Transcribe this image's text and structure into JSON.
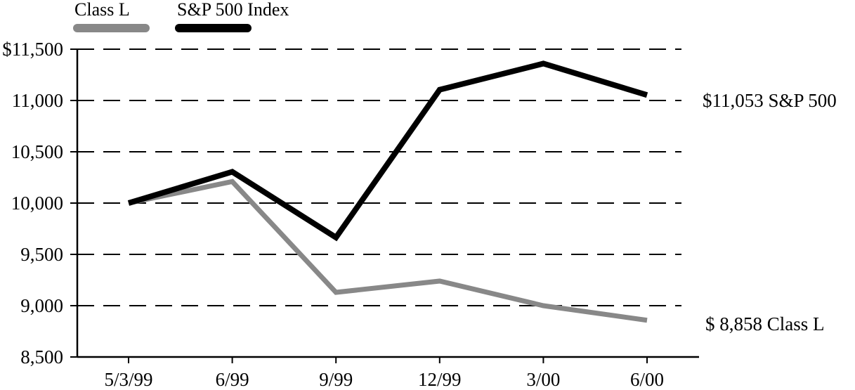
{
  "chart_data": {
    "type": "line",
    "categories": [
      "5/3/99",
      "6/99",
      "9/99",
      "12/99",
      "3/00",
      "6/00"
    ],
    "series": [
      {
        "name": "Class L",
        "values": [
          10000,
          10210,
          9130,
          9240,
          9000,
          8858
        ],
        "color": "#888888"
      },
      {
        "name": "S&P 500 Index",
        "values": [
          10000,
          10305,
          9665,
          11105,
          11360,
          11053
        ],
        "color": "#000000"
      }
    ],
    "ylim": [
      8500,
      11500
    ],
    "yticks": [
      8500,
      9000,
      9500,
      10000,
      10500,
      11000,
      11500
    ],
    "ytick_labels": [
      "8,500",
      "9,000",
      "9,500",
      "10,000",
      "10,500",
      "11,000",
      "$11,500"
    ],
    "grid": "horizontal dashed",
    "legend_position": "top-left",
    "end_labels": [
      {
        "series": "S&P 500 Index",
        "text": "$11,053  S&P 500"
      },
      {
        "series": "Class L",
        "text": "$ 8,858 Class L"
      }
    ]
  }
}
